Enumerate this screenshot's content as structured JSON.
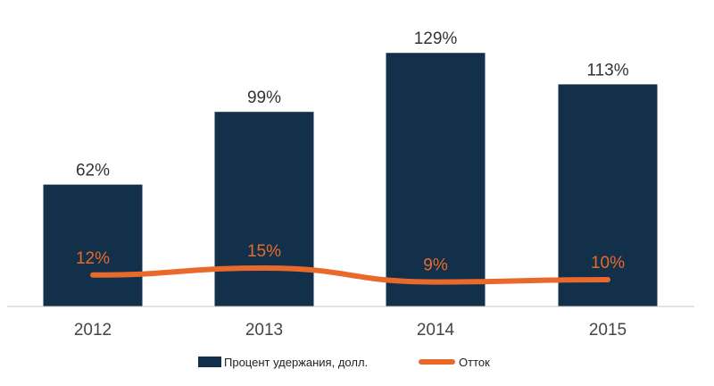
{
  "chart_data": {
    "type": "bar",
    "categories": [
      "2012",
      "2013",
      "2014",
      "2015"
    ],
    "series": [
      {
        "name": "Процент удержания, долл.",
        "type": "bar",
        "color": "#13304a",
        "values": [
          62,
          99,
          129,
          113
        ],
        "labels": [
          "62%",
          "99%",
          "129%",
          "113%"
        ]
      },
      {
        "name": "Отток",
        "type": "line",
        "color": "#e8692a",
        "values": [
          12,
          15,
          9,
          10
        ],
        "labels": [
          "12%",
          "15%",
          "9%",
          "10%"
        ]
      }
    ],
    "title": "",
    "xlabel": "",
    "ylabel": "",
    "ylim": [
      0,
      130
    ],
    "grid": false,
    "legend": "bottom"
  }
}
